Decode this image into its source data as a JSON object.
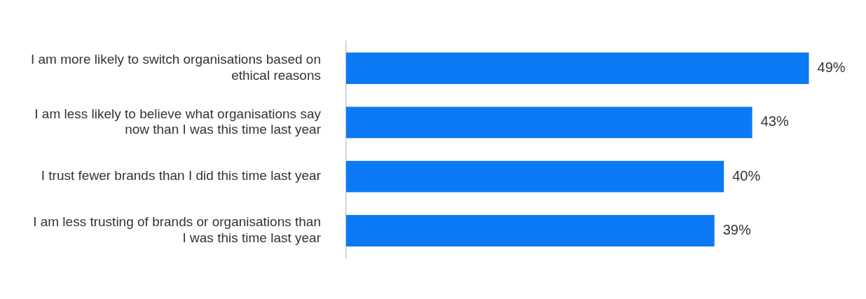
{
  "chart_data": {
    "type": "bar",
    "orientation": "horizontal",
    "categories": [
      "I am more likely to switch organisations based on ethical reasons",
      "I am less likely to believe what organisations say now than I was this time last year",
      "I trust fewer brands than I did this time last year",
      "I am less trusting of brands or organisations than I was this time last year"
    ],
    "values": [
      49,
      43,
      40,
      39
    ],
    "value_labels": [
      "49%",
      "43%",
      "40%",
      "39%"
    ],
    "color": "#0b7af4",
    "grid": false,
    "legend": false
  }
}
